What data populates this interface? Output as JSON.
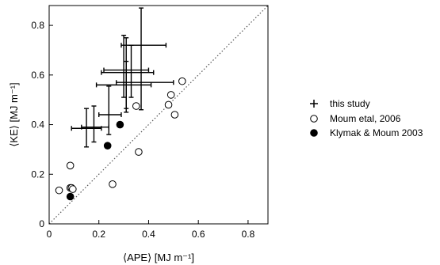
{
  "chart_data": {
    "type": "scatter",
    "title": "",
    "xlabel": "⟨APE⟩ [MJ m⁻¹]",
    "ylabel": "⟨KE⟩ [MJ m⁻¹]",
    "xlim": [
      0,
      0.88
    ],
    "ylim": [
      0,
      0.88
    ],
    "xticks": [
      "0",
      "0.2",
      "0.4",
      "0.6",
      "0.8"
    ],
    "yticks": [
      "0",
      "0.2",
      "0.4",
      "0.6",
      "0.8"
    ],
    "grid": false,
    "legend_position": "right",
    "reference_line": "1:1 dotted",
    "series": [
      {
        "name": "this study",
        "marker": "plus with error bars",
        "points": [
          {
            "x": 0.15,
            "y": 0.385,
            "xerr": [
              0.09,
              0.21
            ],
            "yerr": [
              0.31,
              0.465
            ]
          },
          {
            "x": 0.18,
            "y": 0.39,
            "xerr": [
              0.13,
              0.24
            ],
            "yerr": [
              0.33,
              0.475
            ]
          },
          {
            "x": 0.24,
            "y": 0.44,
            "xerr": [
              0.2,
              0.29
            ],
            "yerr": [
              0.36,
              0.555
            ]
          },
          {
            "x": 0.31,
            "y": 0.56,
            "xerr": [
              0.19,
              0.41
            ],
            "yerr": [
              0.465,
              0.655
            ]
          },
          {
            "x": 0.3,
            "y": 0.72,
            "xerr": [
              0.29,
              0.47
            ],
            "yerr": [
              0.51,
              0.76
            ]
          },
          {
            "x": 0.31,
            "y": 0.61,
            "xerr": [
              0.21,
              0.42
            ],
            "yerr": [
              0.45,
              0.75
            ]
          },
          {
            "x": 0.33,
            "y": 0.62,
            "xerr": [
              0.22,
              0.4
            ],
            "yerr": [
              0.51,
              0.72
            ]
          },
          {
            "x": 0.37,
            "y": 0.57,
            "xerr": [
              0.27,
              0.5
            ],
            "yerr": [
              0.46,
              0.87
            ]
          }
        ]
      },
      {
        "name": "Moum etal, 2006",
        "marker": "open circle",
        "points": [
          {
            "x": 0.04,
            "y": 0.135
          },
          {
            "x": 0.085,
            "y": 0.145
          },
          {
            "x": 0.09,
            "y": 0.145
          },
          {
            "x": 0.095,
            "y": 0.14
          },
          {
            "x": 0.085,
            "y": 0.235
          },
          {
            "x": 0.255,
            "y": 0.16
          },
          {
            "x": 0.36,
            "y": 0.29
          },
          {
            "x": 0.35,
            "y": 0.475
          },
          {
            "x": 0.48,
            "y": 0.48
          },
          {
            "x": 0.49,
            "y": 0.52
          },
          {
            "x": 0.505,
            "y": 0.44
          },
          {
            "x": 0.535,
            "y": 0.575
          }
        ]
      },
      {
        "name": "Klymak & Moum 2003",
        "marker": "filled circle",
        "points": [
          {
            "x": 0.085,
            "y": 0.11
          },
          {
            "x": 0.235,
            "y": 0.315
          },
          {
            "x": 0.285,
            "y": 0.4
          }
        ]
      }
    ]
  }
}
